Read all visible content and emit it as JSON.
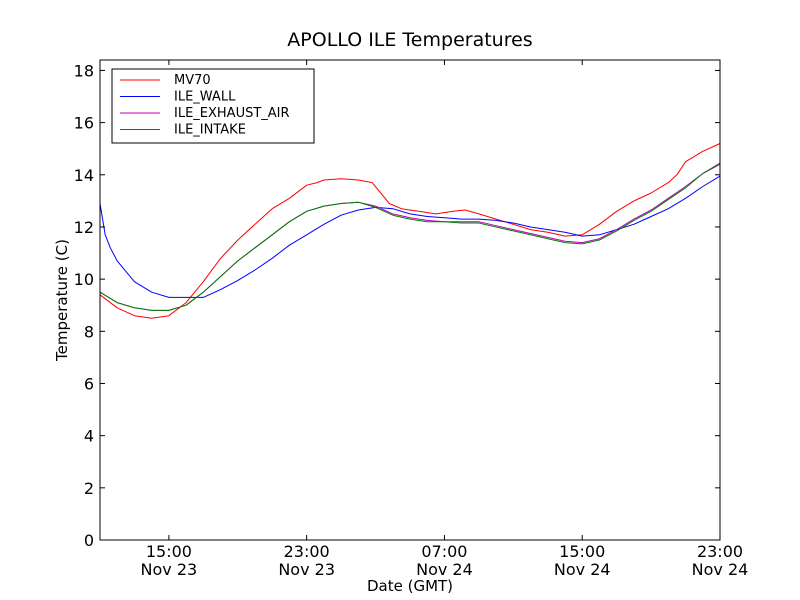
{
  "chart_data": {
    "type": "line",
    "title": "APOLLO ILE Temperatures",
    "xlabel": "Date (GMT)",
    "ylabel": "Temperature (C)",
    "xlim": [
      11.0,
      47.0
    ],
    "ylim": [
      0,
      18.4
    ],
    "grid": false,
    "legend_position": "top-left",
    "x_unit": "hours since 00:00 Nov 23 (GMT)",
    "xticks": [
      {
        "value": 15,
        "label_time": "15:00",
        "label_date": "Nov 23"
      },
      {
        "value": 23,
        "label_time": "23:00",
        "label_date": "Nov 23"
      },
      {
        "value": 31,
        "label_time": "07:00",
        "label_date": "Nov 24"
      },
      {
        "value": 39,
        "label_time": "15:00",
        "label_date": "Nov 24"
      },
      {
        "value": 47,
        "label_time": "23:00",
        "label_date": "Nov 24"
      }
    ],
    "yticks": [
      {
        "value": 0,
        "label": "0"
      },
      {
        "value": 2,
        "label": "2"
      },
      {
        "value": 4,
        "label": "4"
      },
      {
        "value": 6,
        "label": "6"
      },
      {
        "value": 8,
        "label": "8"
      },
      {
        "value": 10,
        "label": "10"
      },
      {
        "value": 12,
        "label": "12"
      },
      {
        "value": 14,
        "label": "14"
      },
      {
        "value": 16,
        "label": "16"
      },
      {
        "value": 18,
        "label": "18"
      }
    ],
    "series": [
      {
        "name": "MV70",
        "color": "#ff0000",
        "x": [
          11.0,
          12.0,
          13.0,
          14.0,
          15.0,
          16.0,
          17.0,
          18.0,
          19.0,
          20.0,
          21.0,
          22.0,
          23.0,
          23.6,
          24.0,
          25.0,
          26.0,
          26.8,
          27.3,
          27.8,
          28.5,
          29.5,
          30.5,
          31.5,
          32.2,
          33.0,
          33.5,
          34.0,
          34.5,
          35.0,
          36.0,
          37.0,
          38.0,
          39.0,
          40.0,
          41.0,
          42.0,
          43.0,
          44.0,
          44.5,
          45.0,
          46.0,
          47.0
        ],
        "y": [
          9.4,
          8.9,
          8.6,
          8.5,
          8.6,
          9.1,
          9.9,
          10.8,
          11.5,
          12.1,
          12.7,
          13.1,
          13.6,
          13.7,
          13.8,
          13.85,
          13.8,
          13.7,
          13.3,
          12.9,
          12.7,
          12.6,
          12.5,
          12.6,
          12.65,
          12.5,
          12.4,
          12.3,
          12.2,
          12.1,
          11.9,
          11.8,
          11.65,
          11.7,
          12.1,
          12.6,
          13.0,
          13.3,
          13.7,
          14.0,
          14.5,
          14.9,
          15.2
        ]
      },
      {
        "name": "ILE_WALL",
        "color": "#0000ff",
        "x": [
          11.0,
          11.3,
          11.6,
          12.0,
          12.5,
          13.0,
          14.0,
          15.0,
          16.0,
          17.0,
          18.0,
          19.0,
          20.0,
          21.0,
          22.0,
          23.0,
          24.0,
          25.0,
          26.0,
          27.0,
          28.0,
          29.0,
          30.0,
          31.0,
          32.0,
          33.0,
          34.0,
          35.0,
          36.0,
          37.0,
          38.0,
          39.0,
          40.0,
          41.0,
          42.0,
          43.0,
          44.0,
          45.0,
          46.0,
          47.0
        ],
        "y": [
          12.9,
          11.7,
          11.2,
          10.7,
          10.3,
          9.9,
          9.5,
          9.3,
          9.3,
          9.3,
          9.6,
          9.95,
          10.35,
          10.8,
          11.3,
          11.7,
          12.1,
          12.45,
          12.65,
          12.75,
          12.7,
          12.5,
          12.4,
          12.35,
          12.3,
          12.3,
          12.25,
          12.15,
          12.0,
          11.9,
          11.8,
          11.65,
          11.7,
          11.9,
          12.1,
          12.4,
          12.7,
          13.1,
          13.55,
          13.95
        ]
      },
      {
        "name": "ILE_EXHAUST_AIR",
        "color": "#bf00bf",
        "x": [
          11.0,
          12.0,
          13.0,
          14.0,
          15.0,
          16.0,
          17.0,
          18.0,
          19.0,
          20.0,
          21.0,
          22.0,
          23.0,
          24.0,
          25.0,
          26.0,
          27.0,
          28.0,
          29.0,
          30.0,
          31.0,
          32.0,
          33.0,
          34.0,
          35.0,
          36.0,
          37.0,
          38.0,
          39.0,
          40.0,
          41.0,
          42.0,
          43.0,
          44.0,
          45.0,
          46.0,
          47.0
        ],
        "y": [
          9.5,
          9.1,
          8.9,
          8.8,
          8.8,
          9.0,
          9.5,
          10.1,
          10.7,
          11.2,
          11.7,
          12.2,
          12.6,
          12.8,
          12.9,
          12.95,
          12.8,
          12.5,
          12.35,
          12.25,
          12.2,
          12.2,
          12.2,
          12.05,
          11.9,
          11.75,
          11.6,
          11.45,
          11.4,
          11.55,
          11.9,
          12.3,
          12.65,
          13.1,
          13.55,
          14.05,
          14.4
        ]
      },
      {
        "name": "ILE_INTAKE",
        "color": "#008000",
        "x": [
          11.0,
          12.0,
          13.0,
          14.0,
          15.0,
          16.0,
          17.0,
          18.0,
          19.0,
          20.0,
          21.0,
          22.0,
          23.0,
          24.0,
          25.0,
          26.0,
          27.0,
          28.0,
          29.0,
          30.0,
          31.0,
          32.0,
          33.0,
          34.0,
          35.0,
          36.0,
          37.0,
          38.0,
          39.0,
          40.0,
          41.0,
          42.0,
          43.0,
          44.0,
          45.0,
          46.0,
          47.0
        ],
        "y": [
          9.5,
          9.1,
          8.9,
          8.8,
          8.8,
          9.0,
          9.5,
          10.1,
          10.7,
          11.2,
          11.7,
          12.2,
          12.6,
          12.8,
          12.9,
          12.95,
          12.75,
          12.45,
          12.3,
          12.2,
          12.2,
          12.15,
          12.15,
          12.0,
          11.85,
          11.7,
          11.55,
          11.4,
          11.35,
          11.5,
          11.85,
          12.25,
          12.6,
          13.05,
          13.5,
          14.05,
          14.45
        ]
      }
    ]
  }
}
